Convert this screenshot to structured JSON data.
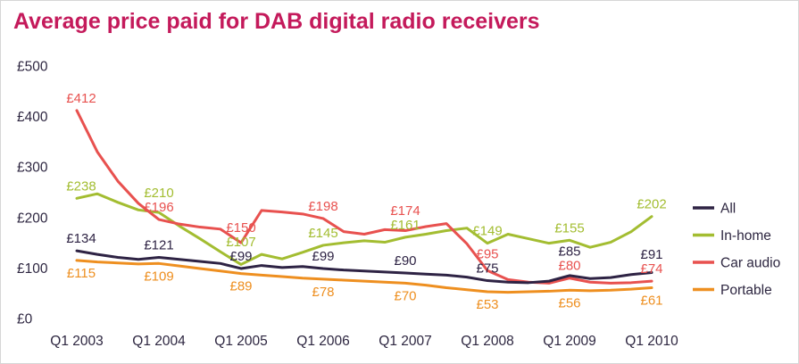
{
  "title": "Average price paid for DAB digital radio receivers",
  "colors": {
    "title": "#c41a5b",
    "axis_text": "#2d2640",
    "legend_text": "#2d2640",
    "background": "#ffffff"
  },
  "chart_data": {
    "type": "line",
    "title": "Average price paid for DAB digital radio receivers",
    "currency_prefix": "£",
    "x_tick_labels": [
      "Q1 2003",
      "Q1 2004",
      "Q1 2005",
      "Q1 2006",
      "Q1 2007",
      "Q1 2008",
      "Q1 2009",
      "Q1 2010"
    ],
    "points_per_tick": 4,
    "x_resolution": "quarterly",
    "y_ticks": [
      0,
      100,
      200,
      300,
      400,
      500
    ],
    "y_tick_labels": [
      "£0",
      "£100",
      "£200",
      "£300",
      "£400",
      "£500"
    ],
    "ylim": [
      0,
      500
    ],
    "grid": false,
    "legend_position": "right",
    "legend_items": [
      "All",
      "In-home",
      "Car audio",
      "Portable"
    ],
    "series": [
      {
        "name": "All",
        "color": "#2e2344",
        "label_side": "above",
        "values": [
          134,
          127,
          121,
          117,
          121,
          117,
          113,
          109,
          99,
          105,
          101,
          103,
          99,
          96,
          94,
          92,
          90,
          88,
          86,
          82,
          75,
          72,
          71,
          74,
          85,
          79,
          81,
          87,
          91
        ],
        "q1_labels": [
          134,
          121,
          99,
          99,
          90,
          75,
          85,
          91
        ]
      },
      {
        "name": "In-home",
        "color": "#a3bd31",
        "label_side": "above",
        "values": [
          238,
          247,
          230,
          215,
          210,
          183,
          158,
          132,
          107,
          127,
          118,
          131,
          145,
          150,
          154,
          151,
          161,
          167,
          174,
          179,
          149,
          167,
          158,
          149,
          155,
          141,
          151,
          172,
          202
        ],
        "q1_labels": [
          238,
          210,
          107,
          145,
          161,
          149,
          155,
          202
        ]
      },
      {
        "name": "Car audio",
        "color": "#e8514f",
        "label_side": "above",
        "values": [
          412,
          330,
          272,
          228,
          196,
          187,
          181,
          177,
          150,
          214,
          211,
          207,
          198,
          172,
          167,
          176,
          174,
          182,
          188,
          148,
          95,
          77,
          72,
          70,
          80,
          72,
          70,
          71,
          74
        ],
        "q1_labels": [
          412,
          196,
          150,
          198,
          174,
          95,
          80,
          74
        ]
      },
      {
        "name": "Portable",
        "color": "#ee8f20",
        "label_side": "below",
        "values": [
          115,
          112,
          110,
          108,
          109,
          104,
          99,
          94,
          89,
          86,
          83,
          80,
          78,
          76,
          74,
          72,
          70,
          66,
          61,
          57,
          53,
          52,
          53,
          54,
          56,
          55,
          56,
          58,
          61
        ],
        "q1_labels": [
          115,
          109,
          89,
          78,
          70,
          53,
          56,
          61
        ]
      }
    ]
  }
}
